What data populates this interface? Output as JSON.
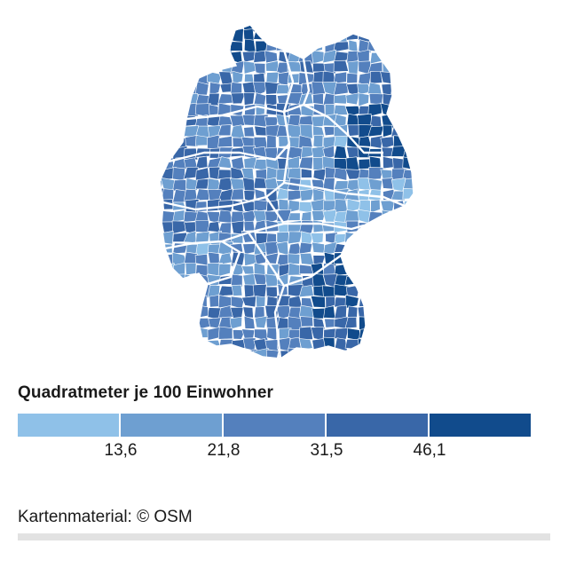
{
  "map": {
    "region": "Deutschland",
    "palette": [
      "#8fc1e8",
      "#6e9fd1",
      "#5480bd",
      "#3967a8",
      "#114b8c"
    ],
    "border_color": "#ffffff"
  },
  "legend": {
    "title": "Quadratmeter je 100 Einwohner",
    "breaks": [
      "13,6",
      "21,8",
      "31,5",
      "46,1"
    ]
  },
  "attribution": "Kartenmaterial: © OSM"
}
